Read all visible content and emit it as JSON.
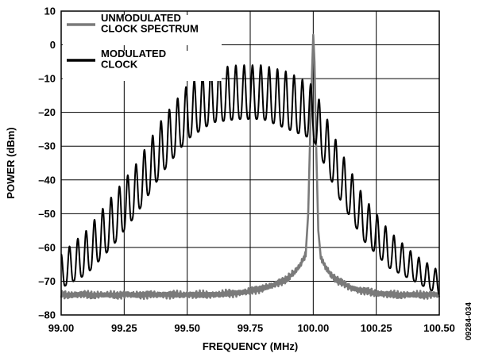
{
  "chart_data": {
    "type": "line",
    "xlabel": "FREQUENCY (MHz)",
    "ylabel": "POWER (dBm)",
    "xlim": [
      99.0,
      100.5
    ],
    "ylim": [
      -80,
      10
    ],
    "xticks": [
      99.0,
      99.25,
      99.5,
      99.75,
      100.0,
      100.25,
      100.5
    ],
    "xtick_labels": [
      "99.00",
      "99.25",
      "99.50",
      "99.75",
      "100.00",
      "100.25",
      "100.50"
    ],
    "yticks": [
      10,
      0,
      -10,
      -20,
      -30,
      -40,
      -50,
      -60,
      -70,
      -80
    ],
    "ytick_labels": [
      "10",
      "0",
      "–10",
      "–20",
      "–30",
      "–40",
      "–50",
      "–60",
      "–70",
      "–80"
    ],
    "grid": true,
    "legend_position": "top-left",
    "figure_id": "09284-034",
    "series": [
      {
        "name": "UNMODULATED\nCLOCK SPECTRUM",
        "color": "#7a7a7a",
        "x": [
          99.0,
          99.1,
          99.2,
          99.3,
          99.4,
          99.5,
          99.6,
          99.7,
          99.75,
          99.8,
          99.85,
          99.9,
          99.93,
          99.95,
          99.97,
          99.98,
          99.99,
          100.0,
          100.005,
          100.01,
          100.02,
          100.03,
          100.05,
          100.07,
          100.1,
          100.15,
          100.2,
          100.25,
          100.3,
          100.4,
          100.5
        ],
        "values": [
          -74,
          -74,
          -74,
          -74,
          -74,
          -74,
          -74,
          -73.5,
          -73,
          -72,
          -71,
          -69,
          -67,
          -65,
          -62,
          -50,
          -20,
          3,
          -5,
          -25,
          -55,
          -63,
          -66,
          -68,
          -70,
          -72,
          -73,
          -73.5,
          -74,
          -74,
          -74
        ]
      },
      {
        "name": "MODULATED\nCLOCK",
        "color": "#000000",
        "envelope": {
          "x": [
            99.0,
            99.1,
            99.2,
            99.3,
            99.4,
            99.5,
            99.6,
            99.7,
            99.8,
            99.9,
            100.0,
            100.1,
            100.2,
            100.3,
            100.4,
            100.5
          ],
          "peak": [
            -62,
            -55,
            -45,
            -35,
            -22,
            -12,
            -7,
            -6,
            -6,
            -8,
            -12,
            -30,
            -45,
            -55,
            -62,
            -67
          ],
          "trough": [
            -72,
            -68,
            -60,
            -50,
            -38,
            -28,
            -23,
            -22,
            -22,
            -25,
            -28,
            -45,
            -58,
            -66,
            -70,
            -74
          ]
        },
        "ripple_period_mhz": 0.033
      }
    ]
  }
}
